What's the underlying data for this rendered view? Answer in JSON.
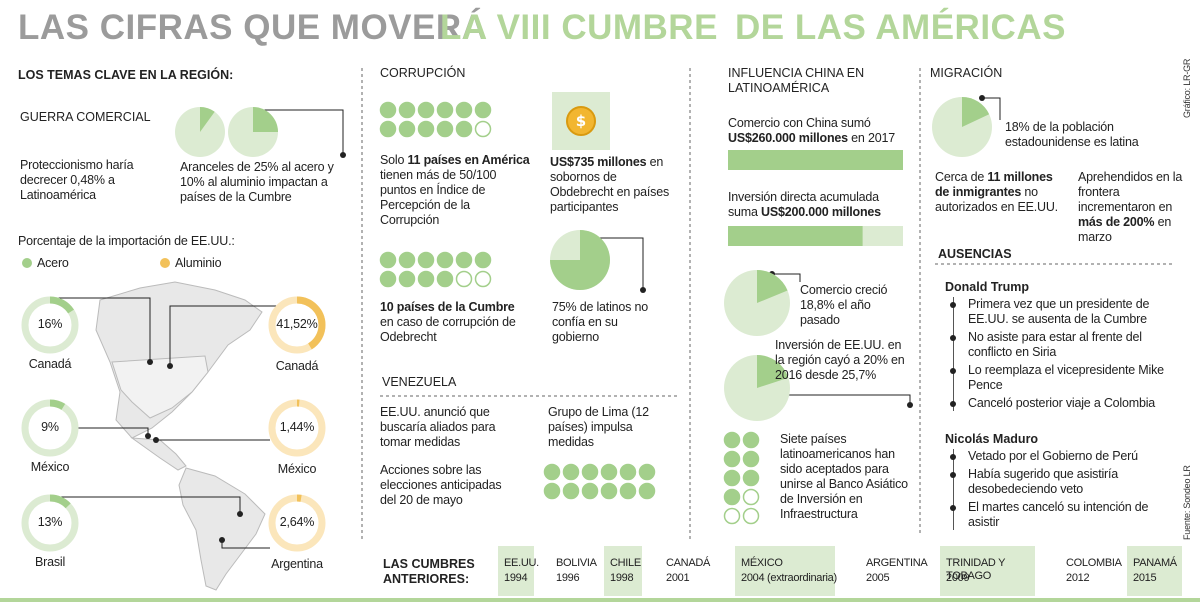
{
  "header": {
    "title": [
      "LAS CIFRAS QUE MOVERÁ",
      "LA VIII CUMBRE",
      "DE LAS AMÉRICAS"
    ]
  },
  "temas": {
    "heading": "LOS TEMAS CLAVE EN LA REGIÓN:",
    "guerra": {
      "title": "GUERRA COMERCIAL",
      "text_left": "Proteccionismo haría decrecer 0,48% a Latinoamérica",
      "text_right": "Aranceles de 25% al acero y 10% al aluminio impactan a países de la Cumbre",
      "pies": [
        10,
        25
      ]
    },
    "importacion": {
      "title": "Porcentaje de la importación de EE.UU.:",
      "legend": [
        "Acero",
        "Aluminio"
      ],
      "acero": [
        {
          "value": 16,
          "label": "16%",
          "country": "Canadá"
        },
        {
          "value": 9,
          "label": "9%",
          "country": "México"
        },
        {
          "value": 13,
          "label": "13%",
          "country": "Brasil"
        }
      ],
      "aluminio": [
        {
          "value": 41.52,
          "label": "41,52%",
          "country": "Canadá"
        },
        {
          "value": 1.44,
          "label": "1,44%",
          "country": "México"
        },
        {
          "value": 2.64,
          "label": "2,64%",
          "country": "Argentina"
        }
      ]
    }
  },
  "corrupcion": {
    "heading": "CORRUPCIÓN",
    "paises_indice": {
      "filled": 11,
      "total": 12,
      "text": [
        "Solo ",
        "11 países en América",
        " tienen más de 50/100 puntos  en Índice de Percepción de la Corrupción"
      ]
    },
    "sobornos": {
      "text": [
        "US$735 millones",
        " en sobornos de Obdebrecht en países participantes"
      ]
    },
    "paises_cumbre": {
      "filled": 10,
      "total": 12,
      "text": [
        "10 países de la Cumbre",
        " en caso de corrupción de Odebrecht"
      ]
    },
    "latinos": {
      "value": 75,
      "text": "75% de latinos no confía en su gobierno"
    }
  },
  "venezuela": {
    "heading": "VENEZUELA",
    "items": [
      "EE.UU. anunció que buscaría aliados para tomar medidas",
      "Acciones sobre las elecciones anticipadas del 20 de mayo"
    ],
    "grupo_lima": {
      "text": "Grupo de Lima (12 países) impulsa medidas",
      "count": 12
    }
  },
  "china": {
    "heading": "INFLUENCIA CHINA EN LATINOAMÉRICA",
    "comercio": {
      "text": [
        "Comercio con China sumó ",
        "US$260.000 millones",
        " en 2017"
      ],
      "value": 260000
    },
    "inversion": {
      "text": [
        "Inversión directa acumulada suma ",
        "US$200.000 millones"
      ],
      "value": 200000
    },
    "comercio_crecio": {
      "value": 18.8,
      "text": "Comercio creció 18,8% el año pasado"
    },
    "inversion_eeuu": {
      "value": 20,
      "text": "Inversión de EE.UU. en la región cayó a 20% en 2016 desde 25,7%"
    },
    "banco": {
      "filled": 7,
      "total": 10,
      "text": "Siete países latinoamericanos han sido aceptados para unirse al Banco Asiático de Inversión en Infraestructura"
    }
  },
  "migracion": {
    "heading": "MIGRACIÓN",
    "latina": {
      "value": 18,
      "text": "18% de la población estadounidense es latina"
    },
    "inmigrantes": {
      "text": [
        "Cerca de ",
        "11 millones de inmigrantes",
        " no autorizados en EE.UU."
      ]
    },
    "aprehendidos": {
      "text": [
        "Aprehendidos en la frontera incrementaron en ",
        "más de 200%",
        " en marzo"
      ]
    }
  },
  "ausencias": {
    "heading": "AUSENCIAS",
    "people": [
      {
        "name": "Donald Trump",
        "items": [
          "Primera vez que un presidente de EE.UU. se ausenta de la Cumbre",
          "No asiste para estar al frente del conflicto en Siria",
          "Lo reemplaza el vicepresidente Mike Pence",
          "Canceló posterior viaje a Colombia"
        ]
      },
      {
        "name": "Nicolás Maduro",
        "items": [
          "Vetado por el Gobierno de Perú",
          "Había sugerido que asistiría desobedeciendo veto",
          "El martes canceló su intención de asistir"
        ]
      }
    ]
  },
  "cumbres": {
    "label": "LAS CUMBRES ANTERIORES:",
    "items": [
      {
        "place": "EE.UU.",
        "year": "1994"
      },
      {
        "place": "BOLIVIA",
        "year": "1996"
      },
      {
        "place": "CHILE",
        "year": "1998"
      },
      {
        "place": "CANADÁ",
        "year": "2001"
      },
      {
        "place": "MÉXICO",
        "year": "2004 (extraordinaria)"
      },
      {
        "place": "ARGENTINA",
        "year": "2005"
      },
      {
        "place": "TRINIDAD Y TOBAGO",
        "year": "2009"
      },
      {
        "place": "COLOMBIA",
        "year": "2012"
      },
      {
        "place": "PANAMÁ",
        "year": "2015"
      }
    ]
  },
  "credits": {
    "grafico": "Gráfico: LR-GR",
    "fuente": "Fuente: Sondeo LR"
  }
}
